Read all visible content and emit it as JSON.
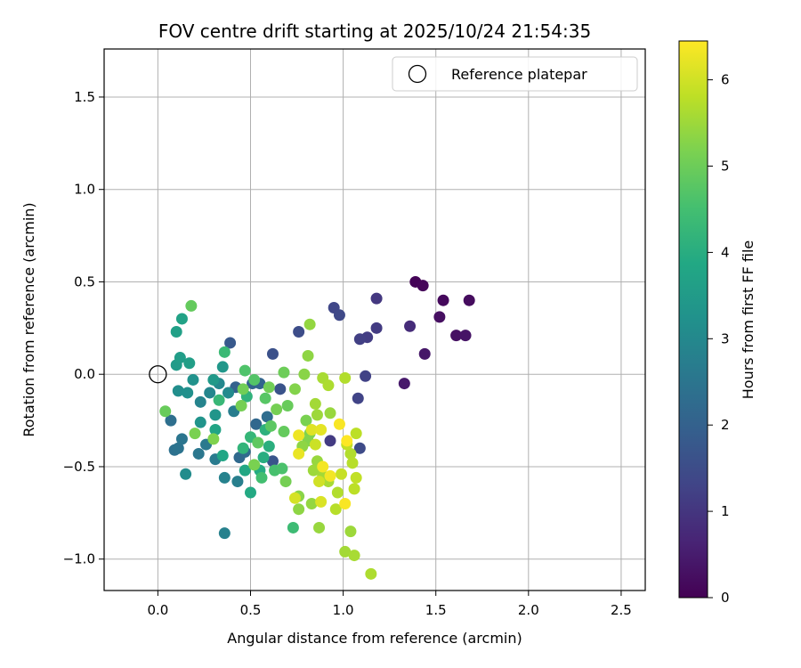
{
  "chart_data": {
    "type": "scatter",
    "title": "FOV centre drift starting at 2025/10/24 21:54:35",
    "xlabel": "Angular distance from reference (arcmin)",
    "ylabel": "Rotation from reference (arcmin)",
    "xlim": [
      -0.29,
      2.63
    ],
    "ylim": [
      -1.17,
      1.76
    ],
    "xticks": [
      0.0,
      0.5,
      1.0,
      1.5,
      2.0,
      2.5
    ],
    "xtick_labels": [
      "0.0",
      "0.5",
      "1.0",
      "1.5",
      "2.0",
      "2.5"
    ],
    "yticks": [
      -1.0,
      -0.5,
      0.0,
      0.5,
      1.0,
      1.5
    ],
    "ytick_labels": [
      "−1.0",
      "−0.5",
      "0.0",
      "0.5",
      "1.0",
      "1.5"
    ],
    "grid": true,
    "colormap": "viridis",
    "colorbar": {
      "label": "Hours from first FF file",
      "range": [
        0,
        6.45
      ],
      "ticks": [
        0,
        1,
        2,
        3,
        4,
        5,
        6
      ],
      "tick_labels": [
        "0",
        "1",
        "2",
        "3",
        "4",
        "5",
        "6"
      ]
    },
    "legend": {
      "label": "Reference platepar",
      "placement": "top-right"
    },
    "reference_point": [
      0.0,
      0.0
    ],
    "points": [
      [
        1.39,
        0.5,
        0.05
      ],
      [
        1.43,
        0.48,
        0.1
      ],
      [
        1.54,
        0.4,
        0.15
      ],
      [
        1.68,
        0.4,
        0.2
      ],
      [
        1.52,
        0.31,
        0.25
      ],
      [
        1.61,
        0.21,
        0.3
      ],
      [
        1.66,
        0.21,
        0.35
      ],
      [
        1.44,
        0.11,
        0.4
      ],
      [
        1.33,
        -0.05,
        0.45
      ],
      [
        1.36,
        0.26,
        0.8
      ],
      [
        1.18,
        0.41,
        1.05
      ],
      [
        1.18,
        0.25,
        1.1
      ],
      [
        1.13,
        0.2,
        1.15
      ],
      [
        1.09,
        0.19,
        1.2
      ],
      [
        1.12,
        -0.01,
        1.25
      ],
      [
        1.08,
        -0.13,
        1.3
      ],
      [
        0.95,
        0.36,
        1.35
      ],
      [
        0.98,
        0.32,
        1.4
      ],
      [
        0.76,
        0.23,
        1.5
      ],
      [
        0.93,
        -0.36,
        1.1
      ],
      [
        1.09,
        -0.4,
        1.45
      ],
      [
        0.62,
        0.11,
        1.6
      ],
      [
        0.66,
        -0.08,
        1.65
      ],
      [
        0.62,
        -0.47,
        1.7
      ],
      [
        0.39,
        0.17,
        1.8
      ],
      [
        0.42,
        -0.07,
        2.0
      ],
      [
        0.51,
        -0.05,
        2.05
      ],
      [
        0.55,
        -0.05,
        2.1
      ],
      [
        0.53,
        -0.27,
        2.15
      ],
      [
        0.44,
        -0.45,
        2.2
      ],
      [
        0.47,
        -0.42,
        2.25
      ],
      [
        0.59,
        -0.23,
        2.3
      ],
      [
        0.07,
        -0.25,
        2.35
      ],
      [
        0.09,
        -0.41,
        2.4
      ],
      [
        0.11,
        -0.4,
        2.45
      ],
      [
        0.13,
        -0.35,
        2.5
      ],
      [
        0.22,
        -0.43,
        2.55
      ],
      [
        0.26,
        -0.38,
        2.6
      ],
      [
        0.31,
        -0.46,
        2.65
      ],
      [
        0.41,
        -0.2,
        2.7
      ],
      [
        0.43,
        -0.58,
        2.75
      ],
      [
        0.36,
        -0.86,
        2.8
      ],
      [
        0.36,
        -0.56,
        2.85
      ],
      [
        0.23,
        -0.15,
        2.9
      ],
      [
        0.28,
        -0.1,
        2.95
      ],
      [
        0.33,
        -0.05,
        3.0
      ],
      [
        0.38,
        -0.1,
        3.05
      ],
      [
        0.15,
        -0.54,
        3.1
      ],
      [
        0.11,
        -0.09,
        3.15
      ],
      [
        0.16,
        -0.1,
        3.2
      ],
      [
        0.19,
        -0.03,
        3.25
      ],
      [
        0.23,
        -0.26,
        3.3
      ],
      [
        0.31,
        -0.22,
        3.35
      ],
      [
        0.35,
        0.04,
        3.4
      ],
      [
        0.3,
        -0.03,
        3.45
      ],
      [
        0.1,
        0.05,
        3.5
      ],
      [
        0.12,
        0.09,
        3.55
      ],
      [
        0.17,
        0.06,
        3.6
      ],
      [
        0.1,
        0.23,
        3.65
      ],
      [
        0.13,
        0.3,
        3.7
      ],
      [
        0.31,
        -0.3,
        3.75
      ],
      [
        0.35,
        -0.44,
        3.8
      ],
      [
        0.47,
        -0.52,
        3.85
      ],
      [
        0.5,
        -0.64,
        3.9
      ],
      [
        0.55,
        -0.52,
        3.95
      ],
      [
        0.57,
        -0.45,
        4.0
      ],
      [
        0.6,
        -0.39,
        4.05
      ],
      [
        0.58,
        -0.3,
        4.1
      ],
      [
        0.48,
        -0.12,
        4.15
      ],
      [
        0.46,
        -0.4,
        4.2
      ],
      [
        0.5,
        -0.34,
        4.25
      ],
      [
        0.33,
        -0.14,
        4.3
      ],
      [
        0.36,
        0.12,
        4.35
      ],
      [
        0.73,
        -0.83,
        4.4
      ],
      [
        0.56,
        -0.56,
        4.5
      ],
      [
        0.63,
        -0.52,
        4.55
      ],
      [
        0.67,
        -0.51,
        4.6
      ],
      [
        0.47,
        0.02,
        4.65
      ],
      [
        0.52,
        -0.03,
        4.7
      ],
      [
        0.58,
        -0.13,
        4.75
      ],
      [
        0.61,
        -0.28,
        4.8
      ],
      [
        0.54,
        -0.37,
        4.85
      ],
      [
        0.68,
        -0.31,
        4.9
      ],
      [
        0.7,
        -0.17,
        4.95
      ],
      [
        0.68,
        0.01,
        5.0
      ],
      [
        0.6,
        -0.07,
        5.05
      ],
      [
        0.64,
        -0.19,
        5.1
      ],
      [
        0.8,
        -0.25,
        5.15
      ],
      [
        0.82,
        -0.32,
        5.2
      ],
      [
        0.81,
        -0.36,
        5.25
      ],
      [
        0.76,
        -0.66,
        5.3
      ],
      [
        0.76,
        -0.73,
        5.35
      ],
      [
        0.83,
        -0.7,
        5.4
      ],
      [
        0.87,
        -0.83,
        5.45
      ],
      [
        0.18,
        0.37,
        4.9
      ],
      [
        0.69,
        -0.58,
        5.1
      ],
      [
        0.52,
        -0.49,
        5.15
      ],
      [
        0.3,
        -0.35,
        5.2
      ],
      [
        0.2,
        -0.32,
        5.15
      ],
      [
        0.04,
        -0.2,
        4.95
      ],
      [
        0.46,
        -0.08,
        5.05
      ],
      [
        0.45,
        -0.17,
        5.1
      ],
      [
        0.74,
        -0.08,
        5.25
      ],
      [
        0.79,
        0.0,
        5.3
      ],
      [
        0.81,
        0.1,
        5.35
      ],
      [
        0.82,
        0.27,
        5.4
      ],
      [
        0.78,
        -0.39,
        5.35
      ],
      [
        0.86,
        -0.47,
        5.45
      ],
      [
        0.84,
        -0.52,
        5.5
      ],
      [
        0.89,
        -0.55,
        5.55
      ],
      [
        0.92,
        -0.58,
        5.6
      ],
      [
        0.93,
        -0.21,
        5.45
      ],
      [
        0.86,
        -0.22,
        5.5
      ],
      [
        0.85,
        -0.16,
        5.55
      ],
      [
        0.89,
        -0.02,
        5.6
      ],
      [
        0.92,
        -0.06,
        5.65
      ],
      [
        1.01,
        -0.02,
        5.7
      ],
      [
        1.04,
        -0.85,
        5.5
      ],
      [
        1.01,
        -0.96,
        5.55
      ],
      [
        1.06,
        -0.98,
        5.6
      ],
      [
        1.15,
        -1.08,
        5.65
      ],
      [
        0.97,
        -0.64,
        5.7
      ],
      [
        0.96,
        -0.73,
        5.75
      ],
      [
        1.06,
        -0.62,
        5.8
      ],
      [
        1.07,
        -0.56,
        5.85
      ],
      [
        1.04,
        -0.43,
        5.7
      ],
      [
        1.05,
        -0.48,
        5.75
      ],
      [
        1.07,
        -0.32,
        5.8
      ],
      [
        1.02,
        -0.38,
        5.85
      ],
      [
        0.99,
        -0.54,
        5.9
      ],
      [
        0.85,
        -0.38,
        5.95
      ],
      [
        0.87,
        -0.58,
        6.0
      ],
      [
        0.74,
        -0.67,
        6.05
      ],
      [
        0.88,
        -0.69,
        6.1
      ],
      [
        0.83,
        -0.3,
        6.15
      ],
      [
        0.88,
        -0.3,
        6.2
      ],
      [
        0.76,
        -0.43,
        6.25
      ],
      [
        0.76,
        -0.33,
        6.3
      ],
      [
        0.93,
        -0.55,
        6.35
      ],
      [
        0.98,
        -0.27,
        6.4
      ],
      [
        1.02,
        -0.36,
        6.45
      ],
      [
        1.01,
        -0.7,
        6.4
      ],
      [
        0.89,
        -0.5,
        6.35
      ]
    ]
  }
}
